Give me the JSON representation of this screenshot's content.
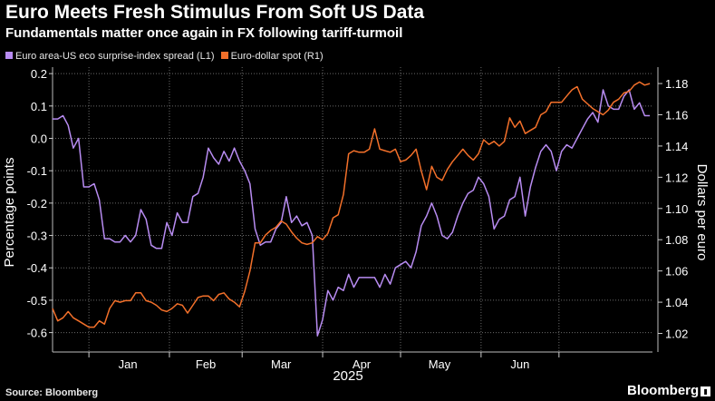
{
  "header": {
    "title": "Euro Meets Fresh Stimulus From Soft US Data",
    "subtitle": "Fundamentals matter once again in FX following tariff-turmoil"
  },
  "footer": {
    "source": "Source: Bloomberg",
    "brand": "Bloomberg"
  },
  "chart_data": {
    "type": "line",
    "x_unit": "date",
    "xlabel": "2025",
    "x_tick_labels": [
      "Jan",
      "Feb",
      "Mar",
      "Apr",
      "May",
      "Jun"
    ],
    "left_axis": {
      "label": "Percentage points",
      "range": [
        -0.66,
        0.22
      ],
      "ticks": [
        0.2,
        0.1,
        0.0,
        -0.1,
        -0.2,
        -0.3,
        -0.4,
        -0.5,
        -0.6
      ],
      "tick_labels": [
        "0.2",
        "0.1",
        "0.0",
        "-0.1",
        "-0.2",
        "-0.3",
        "-0.4",
        "-0.5",
        "-0.6"
      ]
    },
    "right_axis": {
      "label": "Dollars per euro",
      "range": [
        1.0081,
        1.1905
      ],
      "ticks": [
        1.18,
        1.16,
        1.14,
        1.12,
        1.1,
        1.08,
        1.06,
        1.04,
        1.02
      ],
      "tick_labels": [
        "1.18",
        "1.16",
        "1.14",
        "1.12",
        "1.10",
        "1.08",
        "1.06",
        "1.04",
        "1.02"
      ]
    },
    "grid": true,
    "legend_position": "top-left",
    "series": [
      {
        "name": "Euro area-US eco surprise-index spread (L1)",
        "axis": "left",
        "color": "#b88cf2",
        "points": [
          [
            "2024-12-18",
            0.06
          ],
          [
            "2024-12-20",
            0.06
          ],
          [
            "2024-12-22",
            0.07
          ],
          [
            "2024-12-24",
            0.04
          ],
          [
            "2024-12-26",
            -0.03
          ],
          [
            "2024-12-28",
            0.0
          ],
          [
            "2024-12-30",
            -0.15
          ],
          [
            "2025-01-01",
            -0.15
          ],
          [
            "2025-01-03",
            -0.14
          ],
          [
            "2025-01-05",
            -0.19
          ],
          [
            "2025-01-07",
            -0.31
          ],
          [
            "2025-01-09",
            -0.31
          ],
          [
            "2025-01-11",
            -0.32
          ],
          [
            "2025-01-13",
            -0.32
          ],
          [
            "2025-01-15",
            -0.3
          ],
          [
            "2025-01-17",
            -0.32
          ],
          [
            "2025-01-19",
            -0.3
          ],
          [
            "2025-01-21",
            -0.22
          ],
          [
            "2025-01-23",
            -0.25
          ],
          [
            "2025-01-25",
            -0.33
          ],
          [
            "2025-01-27",
            -0.34
          ],
          [
            "2025-01-29",
            -0.34
          ],
          [
            "2025-01-31",
            -0.26
          ],
          [
            "2025-02-02",
            -0.3
          ],
          [
            "2025-02-04",
            -0.23
          ],
          [
            "2025-02-06",
            -0.26
          ],
          [
            "2025-02-08",
            -0.26
          ],
          [
            "2025-02-10",
            -0.18
          ],
          [
            "2025-02-12",
            -0.17
          ],
          [
            "2025-02-14",
            -0.12
          ],
          [
            "2025-02-16",
            -0.03
          ],
          [
            "2025-02-18",
            -0.06
          ],
          [
            "2025-02-20",
            -0.08
          ],
          [
            "2025-02-22",
            -0.04
          ],
          [
            "2025-02-24",
            -0.07
          ],
          [
            "2025-02-26",
            -0.03
          ],
          [
            "2025-02-28",
            -0.07
          ],
          [
            "2025-03-02",
            -0.1
          ],
          [
            "2025-03-04",
            -0.14
          ],
          [
            "2025-03-06",
            -0.28
          ],
          [
            "2025-03-08",
            -0.33
          ],
          [
            "2025-03-10",
            -0.32
          ],
          [
            "2025-03-12",
            -0.32
          ],
          [
            "2025-03-14",
            -0.28
          ],
          [
            "2025-03-16",
            -0.26
          ],
          [
            "2025-03-18",
            -0.18
          ],
          [
            "2025-03-20",
            -0.26
          ],
          [
            "2025-03-22",
            -0.24
          ],
          [
            "2025-03-24",
            -0.27
          ],
          [
            "2025-03-26",
            -0.26
          ],
          [
            "2025-03-28",
            -0.3
          ],
          [
            "2025-03-30",
            -0.61
          ],
          [
            "2025-04-01",
            -0.56
          ],
          [
            "2025-04-03",
            -0.47
          ],
          [
            "2025-04-05",
            -0.5
          ],
          [
            "2025-04-07",
            -0.46
          ],
          [
            "2025-04-09",
            -0.47
          ],
          [
            "2025-04-11",
            -0.42
          ],
          [
            "2025-04-13",
            -0.46
          ],
          [
            "2025-04-15",
            -0.43
          ],
          [
            "2025-04-17",
            -0.43
          ],
          [
            "2025-04-19",
            -0.43
          ],
          [
            "2025-04-21",
            -0.43
          ],
          [
            "2025-04-23",
            -0.46
          ],
          [
            "2025-04-25",
            -0.42
          ],
          [
            "2025-04-27",
            -0.45
          ],
          [
            "2025-04-29",
            -0.4
          ],
          [
            "2025-05-01",
            -0.39
          ],
          [
            "2025-05-03",
            -0.38
          ],
          [
            "2025-05-05",
            -0.4
          ],
          [
            "2025-05-07",
            -0.35
          ],
          [
            "2025-05-09",
            -0.27
          ],
          [
            "2025-05-11",
            -0.24
          ],
          [
            "2025-05-13",
            -0.2
          ],
          [
            "2025-05-15",
            -0.24
          ],
          [
            "2025-05-17",
            -0.3
          ],
          [
            "2025-05-19",
            -0.31
          ],
          [
            "2025-05-21",
            -0.29
          ],
          [
            "2025-05-23",
            -0.24
          ],
          [
            "2025-05-25",
            -0.2
          ],
          [
            "2025-05-27",
            -0.17
          ],
          [
            "2025-05-29",
            -0.16
          ],
          [
            "2025-05-31",
            -0.12
          ],
          [
            "2025-06-02",
            -0.14
          ],
          [
            "2025-06-04",
            -0.18
          ],
          [
            "2025-06-06",
            -0.28
          ],
          [
            "2025-06-08",
            -0.25
          ],
          [
            "2025-06-10",
            -0.24
          ],
          [
            "2025-06-12",
            -0.19
          ],
          [
            "2025-06-14",
            -0.18
          ],
          [
            "2025-06-16",
            -0.12
          ],
          [
            "2025-06-18",
            -0.24
          ],
          [
            "2025-06-20",
            -0.15
          ],
          [
            "2025-06-22",
            -0.09
          ],
          [
            "2025-06-24",
            -0.04
          ],
          [
            "2025-06-26",
            -0.02
          ],
          [
            "2025-06-28",
            -0.04
          ],
          [
            "2025-06-30",
            -0.1
          ],
          [
            "2025-07-02",
            -0.04
          ],
          [
            "2025-07-04",
            -0.02
          ],
          [
            "2025-07-06",
            -0.03
          ],
          [
            "2025-07-08",
            0.0
          ],
          [
            "2025-07-10",
            0.03
          ],
          [
            "2025-07-12",
            0.06
          ],
          [
            "2025-07-14",
            0.08
          ],
          [
            "2025-07-16",
            0.05
          ],
          [
            "2025-07-18",
            0.15
          ],
          [
            "2025-07-20",
            0.1
          ],
          [
            "2025-07-22",
            0.09
          ],
          [
            "2025-07-24",
            0.09
          ],
          [
            "2025-07-26",
            0.13
          ],
          [
            "2025-07-28",
            0.15
          ],
          [
            "2025-07-30",
            0.09
          ],
          [
            "2025-08-01",
            0.11
          ],
          [
            "2025-08-03",
            0.07
          ],
          [
            "2025-08-05",
            0.07
          ]
        ]
      },
      {
        "name": "Euro-dollar spot (R1)",
        "axis": "right",
        "color": "#f3702a",
        "points": [
          [
            "2024-12-18",
            1.036
          ],
          [
            "2024-12-20",
            1.028
          ],
          [
            "2024-12-22",
            1.03
          ],
          [
            "2024-12-24",
            1.034
          ],
          [
            "2024-12-26",
            1.03
          ],
          [
            "2024-12-28",
            1.028
          ],
          [
            "2024-12-30",
            1.026
          ],
          [
            "2025-01-01",
            1.024
          ],
          [
            "2025-01-03",
            1.024
          ],
          [
            "2025-01-05",
            1.028
          ],
          [
            "2025-01-07",
            1.026
          ],
          [
            "2025-01-09",
            1.036
          ],
          [
            "2025-01-11",
            1.041
          ],
          [
            "2025-01-13",
            1.04
          ],
          [
            "2025-01-15",
            1.041
          ],
          [
            "2025-01-17",
            1.041
          ],
          [
            "2025-01-19",
            1.046
          ],
          [
            "2025-01-21",
            1.046
          ],
          [
            "2025-01-23",
            1.041
          ],
          [
            "2025-01-25",
            1.04
          ],
          [
            "2025-01-27",
            1.038
          ],
          [
            "2025-01-29",
            1.035
          ],
          [
            "2025-01-31",
            1.034
          ],
          [
            "2025-02-02",
            1.036
          ],
          [
            "2025-02-04",
            1.039
          ],
          [
            "2025-02-06",
            1.038
          ],
          [
            "2025-02-08",
            1.033
          ],
          [
            "2025-02-10",
            1.038
          ],
          [
            "2025-02-12",
            1.043
          ],
          [
            "2025-02-14",
            1.044
          ],
          [
            "2025-02-16",
            1.044
          ],
          [
            "2025-02-18",
            1.041
          ],
          [
            "2025-02-20",
            1.045
          ],
          [
            "2025-02-22",
            1.046
          ],
          [
            "2025-02-24",
            1.042
          ],
          [
            "2025-02-26",
            1.04
          ],
          [
            "2025-02-28",
            1.037
          ],
          [
            "2025-03-02",
            1.047
          ],
          [
            "2025-03-04",
            1.06
          ],
          [
            "2025-03-06",
            1.078
          ],
          [
            "2025-03-08",
            1.078
          ],
          [
            "2025-03-10",
            1.083
          ],
          [
            "2025-03-12",
            1.086
          ],
          [
            "2025-03-14",
            1.088
          ],
          [
            "2025-03-16",
            1.092
          ],
          [
            "2025-03-18",
            1.09
          ],
          [
            "2025-03-20",
            1.085
          ],
          [
            "2025-03-22",
            1.081
          ],
          [
            "2025-03-24",
            1.078
          ],
          [
            "2025-03-26",
            1.077
          ],
          [
            "2025-03-28",
            1.078
          ],
          [
            "2025-03-30",
            1.082
          ],
          [
            "2025-04-01",
            1.08
          ],
          [
            "2025-04-03",
            1.084
          ],
          [
            "2025-04-05",
            1.094
          ],
          [
            "2025-04-07",
            1.096
          ],
          [
            "2025-04-09",
            1.109
          ],
          [
            "2025-04-11",
            1.135
          ],
          [
            "2025-04-13",
            1.137
          ],
          [
            "2025-04-15",
            1.136
          ],
          [
            "2025-04-17",
            1.136
          ],
          [
            "2025-04-19",
            1.138
          ],
          [
            "2025-04-21",
            1.151
          ],
          [
            "2025-04-23",
            1.138
          ],
          [
            "2025-04-25",
            1.137
          ],
          [
            "2025-04-27",
            1.136
          ],
          [
            "2025-04-29",
            1.138
          ],
          [
            "2025-05-01",
            1.13
          ],
          [
            "2025-05-03",
            1.131
          ],
          [
            "2025-05-05",
            1.134
          ],
          [
            "2025-05-07",
            1.138
          ],
          [
            "2025-05-09",
            1.124
          ],
          [
            "2025-05-11",
            1.112
          ],
          [
            "2025-05-13",
            1.127
          ],
          [
            "2025-05-15",
            1.12
          ],
          [
            "2025-05-17",
            1.118
          ],
          [
            "2025-05-19",
            1.125
          ],
          [
            "2025-05-21",
            1.13
          ],
          [
            "2025-05-23",
            1.134
          ],
          [
            "2025-05-25",
            1.138
          ],
          [
            "2025-05-27",
            1.134
          ],
          [
            "2025-05-29",
            1.131
          ],
          [
            "2025-05-31",
            1.135
          ],
          [
            "2025-06-02",
            1.144
          ],
          [
            "2025-06-04",
            1.141
          ],
          [
            "2025-06-06",
            1.143
          ],
          [
            "2025-06-08",
            1.14
          ],
          [
            "2025-06-10",
            1.143
          ],
          [
            "2025-06-12",
            1.158
          ],
          [
            "2025-06-14",
            1.152
          ],
          [
            "2025-06-16",
            1.156
          ],
          [
            "2025-06-18",
            1.148
          ],
          [
            "2025-06-20",
            1.15
          ],
          [
            "2025-06-22",
            1.152
          ],
          [
            "2025-06-24",
            1.16
          ],
          [
            "2025-06-26",
            1.162
          ],
          [
            "2025-06-28",
            1.168
          ],
          [
            "2025-06-30",
            1.168
          ],
          [
            "2025-07-02",
            1.168
          ],
          [
            "2025-07-04",
            1.172
          ],
          [
            "2025-07-06",
            1.176
          ],
          [
            "2025-07-08",
            1.178
          ],
          [
            "2025-07-10",
            1.17
          ],
          [
            "2025-07-12",
            1.167
          ],
          [
            "2025-07-14",
            1.164
          ],
          [
            "2025-07-16",
            1.162
          ],
          [
            "2025-07-18",
            1.16
          ],
          [
            "2025-07-20",
            1.163
          ],
          [
            "2025-07-22",
            1.168
          ],
          [
            "2025-07-24",
            1.17
          ],
          [
            "2025-07-26",
            1.174
          ],
          [
            "2025-07-28",
            1.175
          ],
          [
            "2025-07-30",
            1.179
          ],
          [
            "2025-08-01",
            1.181
          ],
          [
            "2025-08-03",
            1.179
          ],
          [
            "2025-08-05",
            1.18
          ]
        ]
      }
    ]
  }
}
